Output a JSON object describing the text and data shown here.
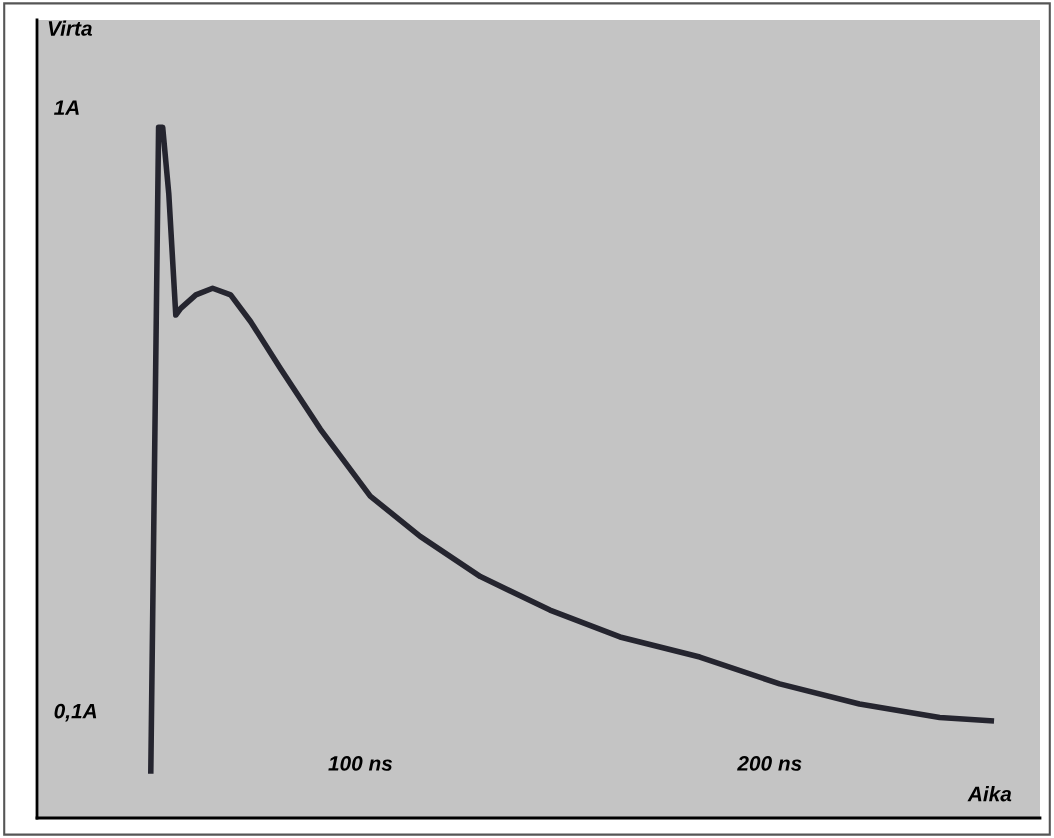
{
  "chart_data": {
    "type": "line",
    "xlabel": "Aika",
    "ylabel": "Virta",
    "x": [
      48.8,
      50.7,
      51.7,
      53.2,
      54.9,
      56.1,
      59.8,
      63.9,
      68.3,
      73.2,
      80.5,
      90.2,
      102.4,
      114.6,
      129.3,
      146.3,
      163.4,
      182.9,
      202.4,
      221.9,
      241.5,
      254.1
    ],
    "series": [
      {
        "color": "#25252f",
        "values": [
          0.01,
          0.97,
          0.97,
          0.87,
          0.69,
          0.7,
          0.72,
          0.73,
          0.72,
          0.68,
          0.61,
          0.52,
          0.42,
          0.36,
          0.3,
          0.25,
          0.21,
          0.18,
          0.14,
          0.11,
          0.09,
          0.085
        ]
      }
    ],
    "xlim": [
      21,
      266
    ],
    "ylim": [
      -0.06,
      1.13
    ],
    "xticks": [
      {
        "value": 100,
        "label": "100 ns"
      },
      {
        "value": 200,
        "label": "200 ns"
      }
    ],
    "yticks": [
      {
        "value": 0.1,
        "label": "0,1A"
      },
      {
        "value": 1,
        "label": "1A"
      }
    ],
    "grid": false,
    "legend": false,
    "marker": "none",
    "line_style": "solid"
  }
}
